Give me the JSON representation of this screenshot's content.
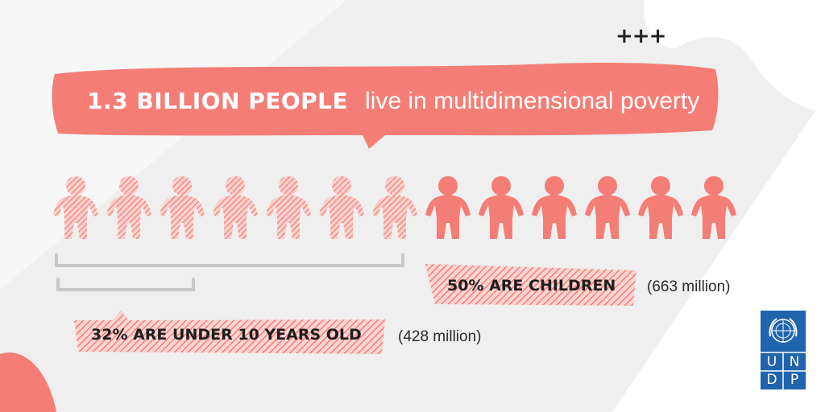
{
  "headline": {
    "bold": "1.3 BILLION PEOPLE",
    "rest": "live in multidimensional poverty"
  },
  "decoration": {
    "plus_marks": "+++"
  },
  "people": {
    "hatched_count": 7,
    "solid_count": 6
  },
  "children": {
    "label": "50% ARE CHILDREN",
    "amount": "(663 million)"
  },
  "under_ten": {
    "label": "32% ARE UNDER 10 YEARS OLD",
    "amount": "(428 million)"
  },
  "logo": {
    "letters": [
      "U",
      "N",
      "D",
      "P"
    ]
  },
  "colors": {
    "coral": "#f47e76",
    "hatch": "#f6a39d",
    "gray_band": "#efefef",
    "bracket": "#c8c8c8",
    "undp_blue": "#1f64ad"
  }
}
